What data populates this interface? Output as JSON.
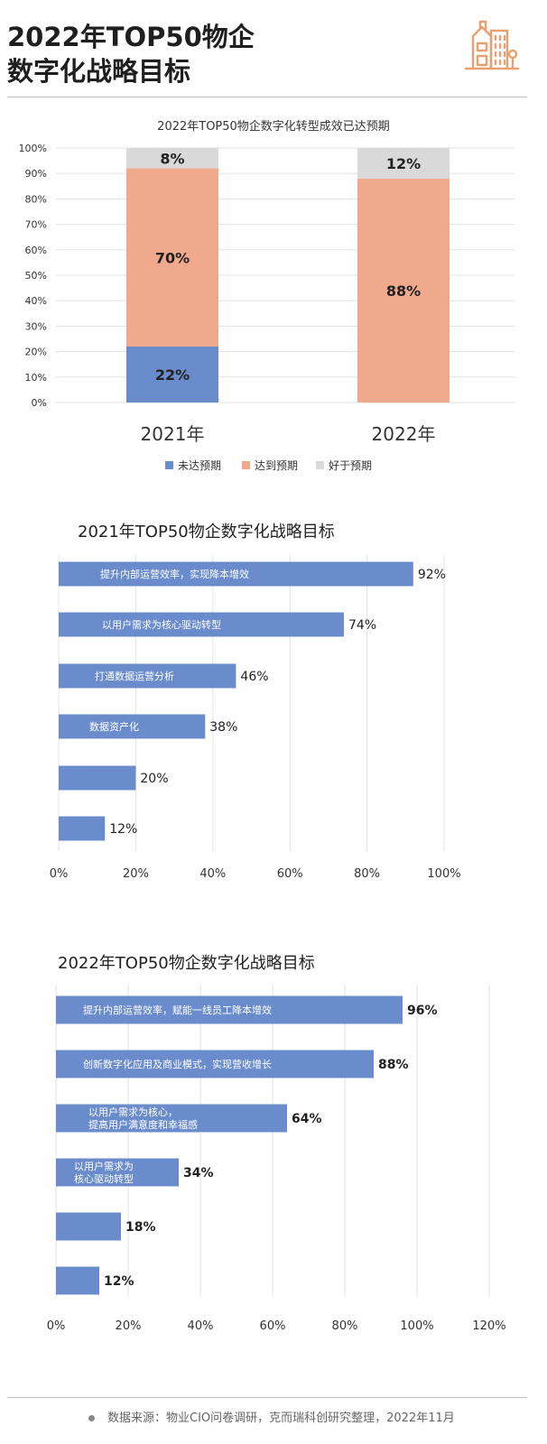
{
  "header": {
    "title_line1": "2022年TOP50物企",
    "title_line2": "数字化战略目标",
    "icon": "building-icon",
    "accent_color": "#e8a070"
  },
  "chart_data": [
    {
      "type": "bar",
      "stacked": true,
      "title": "2022年TOP50物企数字化转型成效已达预期",
      "categories": [
        "2021年",
        "2022年"
      ],
      "series": [
        {
          "name": "未达预期",
          "values": [
            22,
            0
          ],
          "labels": [
            "22%",
            ""
          ],
          "color": "#6b8ccc"
        },
        {
          "name": "达到预期",
          "values": [
            70,
            88
          ],
          "labels": [
            "70%",
            "88%"
          ],
          "color": "#f0a98c"
        },
        {
          "name": "好于预期",
          "values": [
            8,
            12
          ],
          "labels": [
            "8%",
            "12%"
          ],
          "color": "#d9d9d9"
        }
      ],
      "ylim": [
        0,
        100
      ],
      "yticks": [
        "0%",
        "10%",
        "20%",
        "30%",
        "40%",
        "50%",
        "60%",
        "70%",
        "80%",
        "90%",
        "100%"
      ],
      "grid": true,
      "legend": "bottom"
    },
    {
      "type": "bar",
      "orientation": "horizontal",
      "title": "2021年TOP50物企数字化战略目标",
      "categories": [
        "提升内部运营效率，实现降本增效",
        "以用户需求为核心驱动转型",
        "打通数据运营分析",
        "数据资产化",
        "",
        ""
      ],
      "values": [
        92,
        74,
        46,
        38,
        20,
        12
      ],
      "value_labels": [
        "92%",
        "74%",
        "46%",
        "38%",
        "20%",
        "12%"
      ],
      "xlim": [
        0,
        100
      ],
      "xticks": [
        "0%",
        "20%",
        "40%",
        "60%",
        "80%",
        "100%"
      ],
      "color": "#6b8ccc",
      "grid": true
    },
    {
      "type": "bar",
      "orientation": "horizontal",
      "title": "2022年TOP50物企数字化战略目标",
      "categories": [
        "提升内部运营效率，赋能一线员工降本增效",
        "创新数字化应用及商业模式，实现营收增长",
        "以用户需求为核心，\n提高用户满意度和幸福感",
        "以用户需求为\n核心驱动转型",
        "",
        ""
      ],
      "values": [
        96,
        88,
        64,
        34,
        18,
        12
      ],
      "value_labels": [
        "96%",
        "88%",
        "64%",
        "34%",
        "18%",
        "12%"
      ],
      "xlim": [
        0,
        120
      ],
      "xticks": [
        "0%",
        "20%",
        "40%",
        "60%",
        "80%",
        "100%",
        "120%"
      ],
      "color": "#6b8ccc",
      "grid": true
    }
  ],
  "footer": {
    "text": "数据来源：物业CIO问卷调研，克而瑞科创研究整理，2022年11月"
  }
}
